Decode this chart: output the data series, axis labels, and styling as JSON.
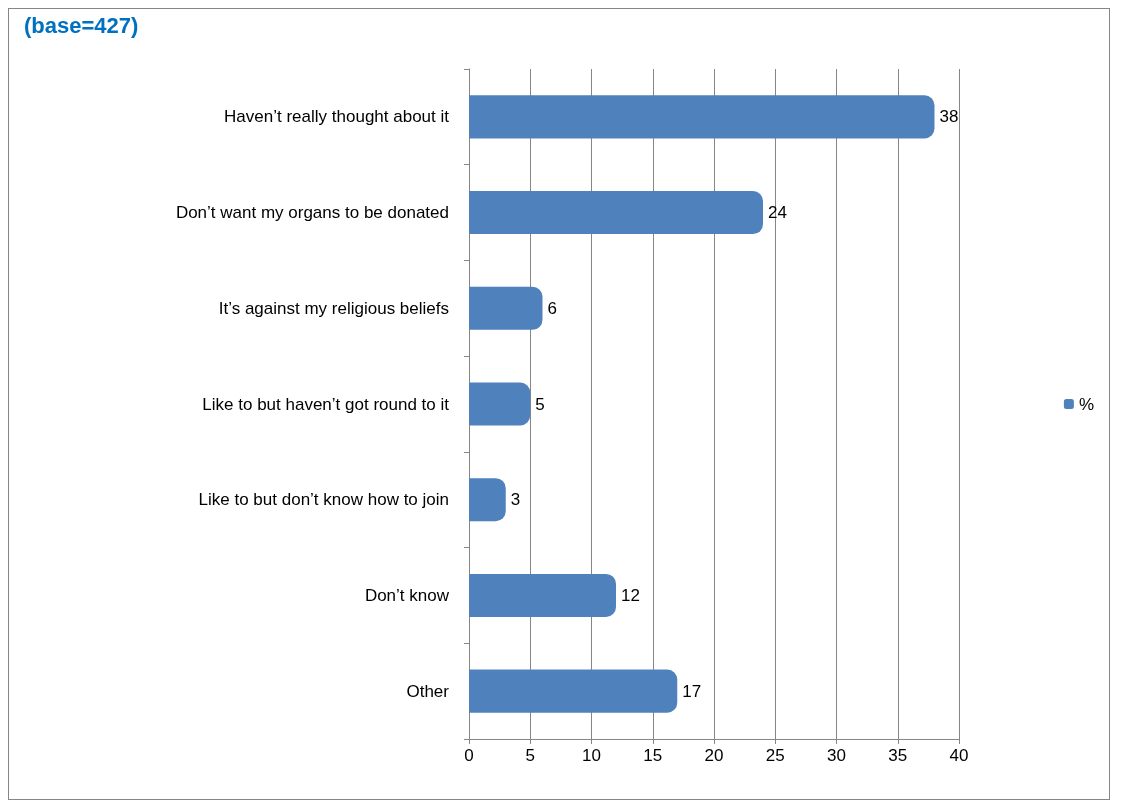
{
  "chart_data": {
    "type": "bar",
    "title": "(base=427)",
    "orientation": "horizontal",
    "categories": [
      "Haven’t really thought about it",
      "Don’t want my organs to be donated",
      "It’s against my religious beliefs",
      "Like to but haven’t got round to it",
      "Like to but don’t know how to join",
      "Don’t know",
      "Other"
    ],
    "series": [
      {
        "name": "%",
        "color": "#4f81bd",
        "values": [
          38,
          24,
          6,
          5,
          3,
          12,
          17
        ]
      }
    ],
    "xlim": [
      0,
      40
    ],
    "xticks": [
      0,
      5,
      10,
      15,
      20,
      25,
      30,
      35,
      40
    ],
    "grid": "x",
    "legend": "right",
    "data_labels": true
  }
}
